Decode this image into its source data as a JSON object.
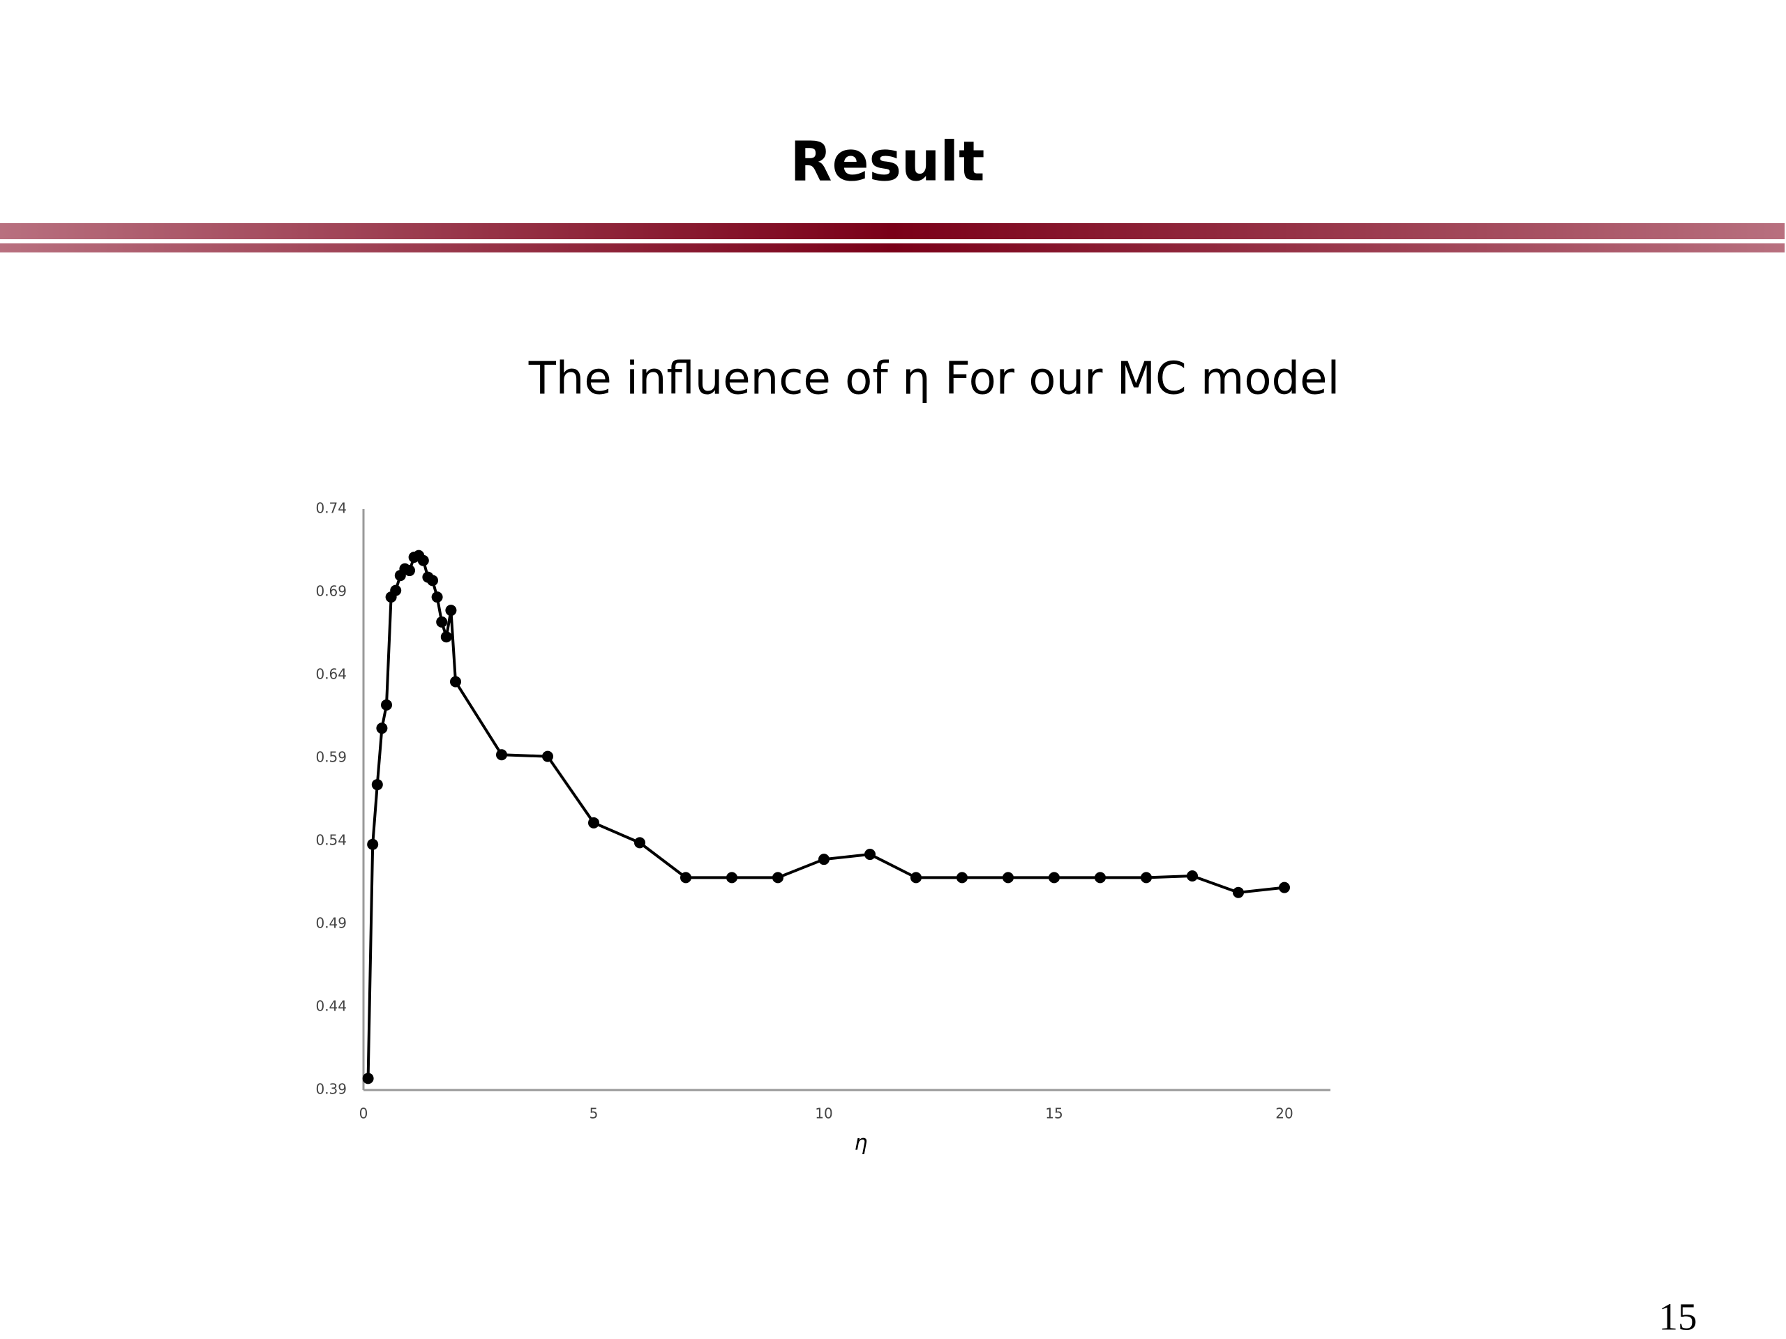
{
  "slide_title": "Result",
  "page_number": "15",
  "chart_data": {
    "type": "line",
    "title": "The influence of η For our MC model",
    "x_label": "η",
    "x": [
      0.1,
      0.2,
      0.3,
      0.4,
      0.5,
      0.6,
      0.7,
      0.8,
      0.9,
      1.0,
      1.1,
      1.2,
      1.3,
      1.4,
      1.5,
      1.6,
      1.7,
      1.8,
      1.9,
      2.0,
      3,
      4,
      5,
      6,
      7,
      8,
      9,
      10,
      11,
      12,
      13,
      14,
      15,
      16,
      17,
      18,
      19,
      20
    ],
    "series": [
      {
        "color": "#000000",
        "values": [
          0.397,
          0.538,
          0.574,
          0.608,
          0.622,
          0.687,
          0.691,
          0.7,
          0.704,
          0.703,
          0.711,
          0.712,
          0.709,
          0.699,
          0.697,
          0.687,
          0.672,
          0.663,
          0.679,
          0.636,
          0.592,
          0.591,
          0.551,
          0.539,
          0.518,
          0.518,
          0.518,
          0.529,
          0.532,
          0.518,
          0.518,
          0.518,
          0.518,
          0.518,
          0.518,
          0.519,
          0.509,
          0.512
        ]
      }
    ],
    "xlim": [
      0,
      21
    ],
    "xticks": [
      0,
      5,
      10,
      15,
      20
    ],
    "ylim": [
      0.39,
      0.74
    ],
    "yticks": [
      0.39,
      0.44,
      0.49,
      0.54,
      0.59,
      0.64,
      0.69,
      0.74
    ],
    "grid": false
  }
}
